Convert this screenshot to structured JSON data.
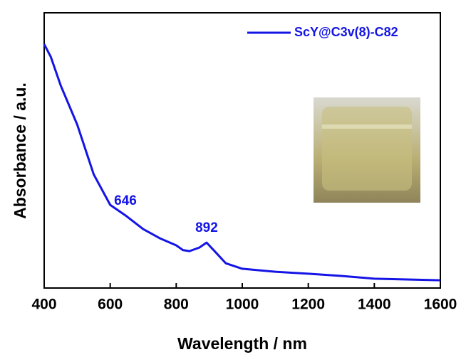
{
  "chart_data": {
    "type": "line",
    "x_label": "Wavelength / nm",
    "y_label": "Absorbance / a.u.",
    "x": [
      400,
      420,
      450,
      500,
      550,
      600,
      646,
      700,
      750,
      800,
      820,
      840,
      870,
      892,
      920,
      950,
      1000,
      1100,
      1200,
      1300,
      1400,
      1500,
      1600
    ],
    "series": [
      {
        "name": "ScY@C3v(8)-C82",
        "color": "#1414e6",
        "values": [
          0.886,
          0.84,
          0.736,
          0.594,
          0.413,
          0.302,
          0.264,
          0.214,
          0.181,
          0.155,
          0.138,
          0.134,
          0.147,
          0.165,
          0.129,
          0.09,
          0.07,
          0.059,
          0.052,
          0.044,
          0.034,
          0.031,
          0.028
        ]
      }
    ],
    "annotations": [
      646,
      892
    ],
    "xlim": [
      400,
      1600
    ],
    "xticks": [
      400,
      600,
      800,
      1000,
      1200,
      1400,
      1600
    ],
    "ylim": [
      0,
      1
    ],
    "legend": "upper right"
  }
}
